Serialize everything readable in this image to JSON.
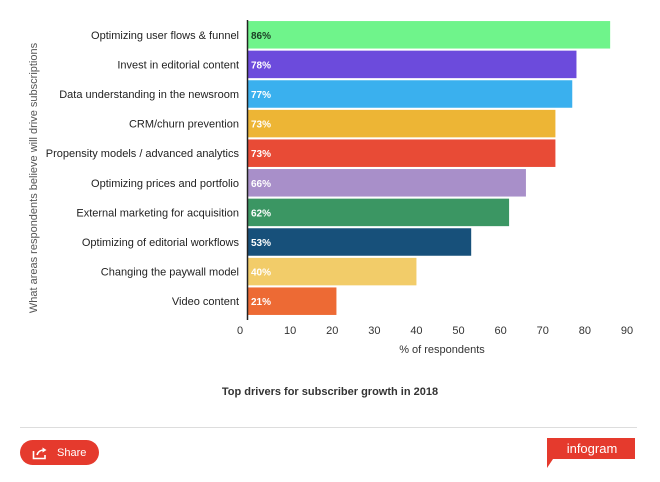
{
  "chart_data": {
    "type": "bar",
    "orientation": "horizontal",
    "categories": [
      "Optimizing user flows & funnel",
      "Invest in editorial content",
      "Data understanding in the newsroom",
      "CRM/churn prevention",
      "Propensity models / advanced analytics",
      "Optimizing prices and portfolio",
      "External marketing for acquisition",
      "Optimizing of editorial workflows",
      "Changing the paywall model",
      "Video content"
    ],
    "values": [
      86,
      78,
      77,
      73,
      73,
      66,
      62,
      53,
      40,
      21
    ],
    "value_labels": [
      "86%",
      "78%",
      "77%",
      "73%",
      "73%",
      "66%",
      "62%",
      "53%",
      "40%",
      "21%"
    ],
    "colors": [
      "#6ff48b",
      "#6c4bdc",
      "#3ab0ee",
      "#edb535",
      "#e84b36",
      "#a88fc9",
      "#3b9663",
      "#17507a",
      "#f2cc69",
      "#ed6a34"
    ],
    "label_colors": [
      "#1a3d24",
      "#ffffff",
      "#ffffff",
      "#ffffff",
      "#ffffff",
      "#ffffff",
      "#ffffff",
      "#ffffff",
      "#ffffff",
      "#ffffff"
    ],
    "xlim": [
      0,
      90
    ],
    "xticks": [
      "0",
      "10",
      "20",
      "30",
      "40",
      "50",
      "60",
      "70",
      "80",
      "90"
    ],
    "xlabel": "% of respondents",
    "ylabel": "What areas respondents believe will drive subscriptions",
    "title": "Top drivers for subscriber growth in 2018"
  },
  "footer": {
    "share_label": "Share",
    "share_icon": "share-icon",
    "brand": "infogram",
    "brand_color": "#e53a2d"
  }
}
